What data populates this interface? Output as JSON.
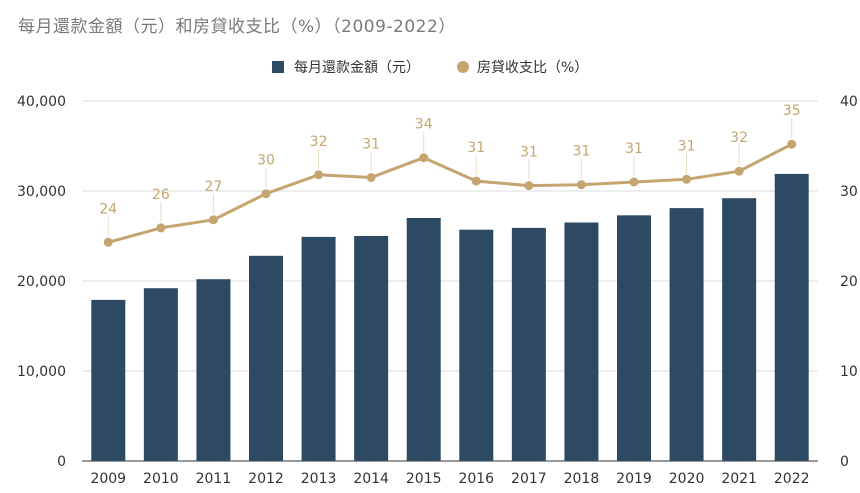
{
  "chart_data": {
    "type": "bar",
    "title": "每月還款金額（元）和房貸收支比（%）（2009-2022）",
    "categories": [
      "2009",
      "2010",
      "2011",
      "2012",
      "2013",
      "2014",
      "2015",
      "2016",
      "2017",
      "2018",
      "2019",
      "2020",
      "2021",
      "2022"
    ],
    "series": [
      {
        "name": "每月還款金額（元）",
        "type": "bar",
        "axis": "left",
        "color": "#2e4a62",
        "values": [
          17900,
          19200,
          20200,
          22800,
          24900,
          25000,
          27000,
          25700,
          25900,
          26500,
          27300,
          28100,
          29200,
          31900
        ]
      },
      {
        "name": "房貸收支比（%）",
        "type": "line",
        "axis": "right",
        "color": "#c4a570",
        "values": [
          24.3,
          25.9,
          26.8,
          29.7,
          31.8,
          31.5,
          33.7,
          31.1,
          30.6,
          30.7,
          31.0,
          31.3,
          32.2,
          35.2
        ],
        "data_labels": [
          "24",
          "26",
          "27",
          "30",
          "32",
          "31",
          "34",
          "31",
          "31",
          "31",
          "31",
          "31",
          "32",
          "35"
        ]
      }
    ],
    "y_left": {
      "range": [
        0,
        40000
      ],
      "ticks": [
        "0",
        "10,000",
        "20,000",
        "30,000",
        "40,000"
      ],
      "tick_values": [
        0,
        10000,
        20000,
        30000,
        40000
      ]
    },
    "y_right": {
      "range": [
        0,
        40
      ],
      "ticks": [
        "0",
        "10",
        "20",
        "30",
        "40"
      ],
      "tick_values": [
        0,
        10,
        20,
        30,
        40
      ]
    },
    "grid": true,
    "legend_position": "top-center"
  }
}
